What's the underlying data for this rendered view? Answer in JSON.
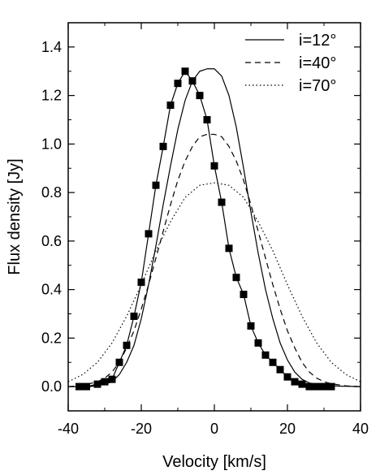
{
  "chart_data": {
    "type": "line",
    "xlabel": "Velocity [km/s]",
    "ylabel": "Flux density [Jy]",
    "xlim": [
      -40,
      40
    ],
    "ylim": [
      -0.1,
      1.5
    ],
    "xticks": [
      -40,
      -20,
      0,
      20,
      40
    ],
    "xtick_labels": [
      "-40",
      "-20",
      "0",
      "20",
      "40"
    ],
    "yticks": [
      0.0,
      0.2,
      0.4,
      0.6,
      0.8,
      1.0,
      1.2,
      1.4
    ],
    "ytick_labels": [
      "0.0",
      "0.2",
      "0.4",
      "0.6",
      "0.8",
      "1.0",
      "1.2",
      "1.4"
    ],
    "grid": false,
    "legend_position": "top-right",
    "series": [
      {
        "name": "i=12°",
        "style": "solid",
        "x": [
          -40,
          -34,
          -30,
          -28,
          -26,
          -24,
          -22,
          -20,
          -18,
          -16,
          -14,
          -12,
          -10,
          -8,
          -6,
          -4,
          -2,
          0,
          2,
          4,
          6,
          8,
          10,
          12,
          14,
          16,
          18,
          20,
          22,
          24,
          26,
          28,
          30,
          34,
          40
        ],
        "y": [
          0.0,
          0.0,
          0.01,
          0.02,
          0.05,
          0.1,
          0.17,
          0.28,
          0.42,
          0.58,
          0.75,
          0.91,
          1.06,
          1.18,
          1.26,
          1.3,
          1.31,
          1.31,
          1.28,
          1.2,
          1.07,
          0.9,
          0.72,
          0.55,
          0.4,
          0.28,
          0.18,
          0.11,
          0.06,
          0.03,
          0.015,
          0.008,
          0.005,
          0.002,
          0.0
        ]
      },
      {
        "name": "i=40°",
        "style": "dashed",
        "x": [
          -40,
          -36,
          -32,
          -30,
          -28,
          -26,
          -24,
          -22,
          -20,
          -18,
          -16,
          -14,
          -12,
          -10,
          -8,
          -6,
          -4,
          -2,
          0,
          2,
          4,
          6,
          8,
          10,
          12,
          14,
          16,
          18,
          20,
          22,
          24,
          26,
          28,
          30,
          32,
          36,
          40
        ],
        "y": [
          0.0,
          0.005,
          0.02,
          0.035,
          0.06,
          0.1,
          0.16,
          0.23,
          0.32,
          0.42,
          0.53,
          0.64,
          0.75,
          0.85,
          0.93,
          0.99,
          1.03,
          1.04,
          1.04,
          1.03,
          0.99,
          0.93,
          0.85,
          0.75,
          0.64,
          0.53,
          0.42,
          0.32,
          0.23,
          0.16,
          0.1,
          0.06,
          0.035,
          0.02,
          0.012,
          0.003,
          0.0
        ]
      },
      {
        "name": "i=70°",
        "style": "dotted",
        "x": [
          -40,
          -36,
          -32,
          -28,
          -24,
          -20,
          -16,
          -12,
          -8,
          -4,
          0,
          4,
          8,
          12,
          16,
          20,
          24,
          28,
          32,
          36,
          40
        ],
        "y": [
          0.02,
          0.05,
          0.1,
          0.18,
          0.29,
          0.42,
          0.56,
          0.68,
          0.78,
          0.83,
          0.84,
          0.83,
          0.78,
          0.68,
          0.56,
          0.42,
          0.29,
          0.18,
          0.1,
          0.05,
          0.02
        ]
      },
      {
        "name": "",
        "style": "markers",
        "x": [
          -37,
          -35,
          -32,
          -30,
          -28,
          -26,
          -24,
          -22,
          -20,
          -18,
          -16,
          -14,
          -12,
          -10,
          -8,
          -6,
          -4,
          -2,
          0,
          2,
          4,
          6,
          8,
          10,
          12,
          14,
          16,
          18,
          20,
          22,
          24,
          26,
          28,
          30,
          32
        ],
        "y": [
          0.0,
          0.0,
          0.01,
          0.02,
          0.03,
          0.1,
          0.17,
          0.29,
          0.43,
          0.63,
          0.83,
          0.99,
          1.16,
          1.25,
          1.3,
          1.26,
          1.2,
          1.1,
          0.91,
          0.76,
          0.57,
          0.45,
          0.38,
          0.25,
          0.18,
          0.13,
          0.1,
          0.07,
          0.04,
          0.02,
          0.01,
          0.0,
          0.0,
          0.0,
          0.0
        ]
      }
    ]
  }
}
